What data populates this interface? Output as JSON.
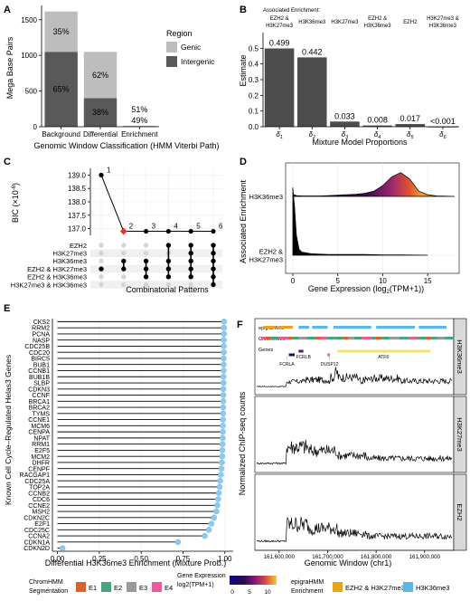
{
  "colors": {
    "genic": "#bdbdbd",
    "intergenic": "#595959",
    "bar_b": "#4d4d4d",
    "dot": "#000000",
    "line_bg": "#e5e5e5",
    "selected": "#e8352d",
    "lollipop": "#8ec9ee",
    "strip": "#d9d9d9",
    "e1": "#d9622b",
    "e2": "#4aa37c",
    "e3": "#9a9a9a",
    "e4": "#e75d9b",
    "enrich_pair": "#e8a31f",
    "enrich_h3k36": "#5bb7e6"
  },
  "panels": {
    "A": {
      "label": "A",
      "chart_data": {
        "type": "bar",
        "stacked": true,
        "categories": [
          "Background",
          "Differential",
          "Enrichment"
        ],
        "series": [
          {
            "name": "Intergenic",
            "values": [
              1050,
              400,
              7
            ],
            "pct_labels": [
              "65%",
              "38%",
              "49%"
            ]
          },
          {
            "name": "Genic",
            "values": [
              565,
              650,
              7
            ],
            "pct_labels": [
              "35%",
              "62%",
              "51%"
            ]
          }
        ],
        "xlabel": "Genomic Window Classification (HMM Viterbi Path)",
        "ylabel": "Mega Base Pairs",
        "ylim": [
          0,
          1700
        ],
        "yticks": [
          0,
          500,
          1000,
          1500
        ],
        "legend_title": "Region",
        "legend_placement": "right"
      }
    },
    "B": {
      "label": "B",
      "chart_data": {
        "type": "bar",
        "categories": [
          "δ1",
          "δ2",
          "δ3",
          "δ4",
          "δ5",
          "δ6"
        ],
        "category_labels": [
          "δ",
          "δ",
          "δ",
          "δ",
          "δ",
          "δ"
        ],
        "category_subs": [
          "1",
          "2",
          "3",
          "4",
          "5",
          "6"
        ],
        "values": [
          0.499,
          0.442,
          0.033,
          0.008,
          0.017,
          0.0
        ],
        "value_labels": [
          "0.499",
          "0.442",
          "0.033",
          "0.008",
          "0.017",
          "<0.001"
        ],
        "enrichment_heading": "Associated Enrichment:",
        "enrichment_labels": [
          "EZH2 & H3K27me3",
          "H3K36me3",
          "H3K27me3",
          "EZH2 & H3K36me3",
          "EZH2",
          "H3K27me3 & H3K36me3"
        ],
        "xlabel": "Mixture Model Proportions",
        "ylabel": "Estimate",
        "ylim": [
          0,
          0.6
        ],
        "yticks": [
          0.0,
          0.1,
          0.2,
          0.3,
          0.4,
          0.5
        ]
      }
    },
    "C": {
      "label": "C",
      "chart_data": {
        "type": "line",
        "x": [
          1,
          2,
          3,
          4,
          5,
          6
        ],
        "y": [
          139.0,
          136.9,
          136.9,
          136.9,
          136.9,
          136.9
        ],
        "selected_index": 1,
        "ylabel": "BIC",
        "ylabel_unit": "(×10",
        "ylabel_exp": "-6",
        "ylabel_close": ")",
        "ylim": [
          136.75,
          139.25
        ],
        "yticks": [
          137.0,
          137.5,
          138.0,
          138.5,
          139.0
        ],
        "xlabel": "Combinatorial Patterns",
        "matrix_rows": [
          "EZH2",
          "H3K27me3",
          "H3K36me3",
          "EZH2 & H3K27me3",
          "EZH2 & H3K36me3",
          "H3K27me3 & H3K36me3"
        ],
        "matrix": [
          [
            0,
            0,
            0,
            1,
            1,
            1
          ],
          [
            0,
            0,
            0,
            0,
            1,
            1
          ],
          [
            0,
            1,
            1,
            1,
            1,
            1
          ],
          [
            1,
            1,
            1,
            1,
            1,
            1
          ],
          [
            0,
            0,
            1,
            1,
            1,
            1
          ],
          [
            0,
            0,
            0,
            0,
            0,
            1
          ]
        ]
      }
    },
    "D": {
      "label": "D",
      "chart_data": {
        "type": "area",
        "series": [
          {
            "name": "H3K36me3",
            "x": [
              0,
              0.4,
              1,
              2,
              3,
              4,
              5,
              6,
              7,
              8,
              9,
              10,
              11,
              12,
              13,
              14,
              15,
              16,
              17,
              18
            ],
            "y": [
              0.05,
              0.02,
              0.01,
              0.01,
              0.01,
              0.02,
              0.03,
              0.04,
              0.05,
              0.07,
              0.12,
              0.25,
              0.45,
              0.55,
              0.4,
              0.12,
              0.04,
              0.01,
              0.005,
              0.0
            ]
          },
          {
            "name": "EZH2 & H3K27me3",
            "x": [
              0,
              0.2,
              0.4,
              0.7,
              1,
              2,
              3,
              4,
              5,
              6,
              8,
              10,
              12,
              15
            ],
            "y": [
              1.7,
              1.2,
              0.5,
              0.15,
              0.08,
              0.04,
              0.03,
              0.02,
              0.02,
              0.02,
              0.02,
              0.01,
              0.01,
              0.0
            ]
          }
        ],
        "xlabel": "Gene Expression (log",
        "xlabel_sub": "2",
        "xlabel_end": "(TPM+1))",
        "ylabel": "Associated Enrichment",
        "xlim": [
          -0.8,
          18.5
        ],
        "xticks": [
          0,
          5,
          10,
          15
        ]
      }
    },
    "E": {
      "label": "E",
      "chart_data": {
        "type": "scatter",
        "genes": [
          "CKS2",
          "RRM2",
          "PCNA",
          "NASP",
          "CDC25B",
          "CDC20",
          "BIRC5",
          "BUB1",
          "CCNB1",
          "BUB1B",
          "SLBP",
          "CDKN3",
          "CCNF",
          "BRCA1",
          "BRCA2",
          "TYMS",
          "CCNE1",
          "MCM6",
          "CENPA",
          "NPAT",
          "RRM1",
          "E2F5",
          "MCM2",
          "DHFR",
          "CENPF",
          "RACGAP1",
          "CDC25A",
          "TOP2A",
          "CCNB2",
          "CDC6",
          "CCNE2",
          "MSH2",
          "CDKN2C",
          "E2F1",
          "CDC25C",
          "CCNA2",
          "CDKN1A",
          "CDKN2D"
        ],
        "values": [
          0.995,
          0.995,
          0.995,
          0.994,
          0.994,
          0.994,
          0.993,
          0.993,
          0.993,
          0.992,
          0.992,
          0.991,
          0.991,
          0.99,
          0.99,
          0.99,
          0.989,
          0.988,
          0.988,
          0.987,
          0.986,
          0.985,
          0.984,
          0.982,
          0.98,
          0.976,
          0.972,
          0.968,
          0.964,
          0.96,
          0.955,
          0.95,
          0.935,
          0.92,
          0.905,
          0.88,
          0.72,
          0.03
        ],
        "xlabel": "Differential H3K36me3 Enrichment (Mixture Prob.)",
        "ylabel": "Known Cell Cycle–Regulated Helas3 Genes",
        "xlim": [
          -0.03,
          1.05
        ],
        "xticks": [
          0.0,
          0.25,
          0.5,
          0.75,
          1.0
        ],
        "xtick_labels": [
          "0.00",
          "0.25",
          "0.50",
          "0.75",
          "1.00"
        ]
      }
    },
    "F": {
      "label": "F",
      "track_labels": {
        "epigra": "epigraHMM",
        "chrom": "ChromHMM",
        "genes": "Genes"
      },
      "gene_names": [
        "FCRLA",
        "FCRLB",
        "DUSP12",
        "ATF6"
      ],
      "chart_data": {
        "type": "line",
        "facets": [
          "H3K36me3",
          "H3K27me3",
          "EZH2"
        ],
        "xlabel": "Genomic Window (chr1)",
        "ylabel": "Normalized ChIP-seq counts",
        "xlim": [
          161550000,
          161960000
        ],
        "xticks": [
          161600000,
          161700000,
          161800000,
          161900000
        ],
        "xtick_labels": [
          "161,600,000",
          "161,700,000",
          "161,800,000",
          "161,900,000"
        ]
      }
    }
  },
  "legends": {
    "chromhmm_title1": "ChromHMM",
    "chromhmm_title2": "Segmentation",
    "chromhmm_items": [
      "E1",
      "E2",
      "E3",
      "E4"
    ],
    "gene_expr_title1": "Gene Expression",
    "gene_expr_title2": "log2(TPM+1)",
    "gene_expr_ticks": [
      "0",
      "5",
      "10"
    ],
    "epigra_title1": "epigraHMM",
    "epigra_title2": "Enrichment",
    "epigra_items": [
      "EZH2 & H3K27me3",
      "H3K36me3"
    ]
  }
}
